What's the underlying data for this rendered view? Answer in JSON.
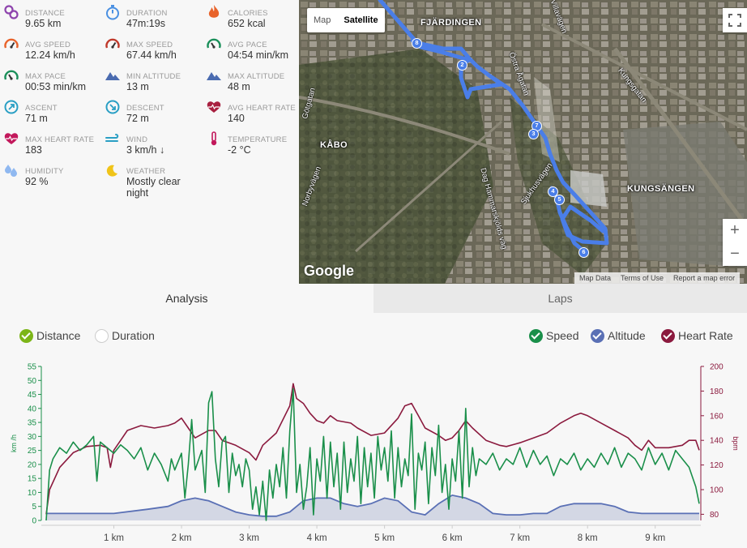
{
  "stats": [
    {
      "label": "DISTANCE",
      "value": "9.65 km",
      "icon": "distance-icon",
      "color": "#8e44ad"
    },
    {
      "label": "DURATION",
      "value": "47m:19s",
      "icon": "stopwatch-icon",
      "color": "#4a90e2"
    },
    {
      "label": "CALORIES",
      "value": "652 kcal",
      "icon": "flame-icon",
      "color": "#e8632b"
    },
    {
      "label": "AVG SPEED",
      "value": "12.24 km/h",
      "icon": "speedometer-icon",
      "color": "#e8632b"
    },
    {
      "label": "MAX SPEED",
      "value": "67.44 km/h",
      "icon": "speedometer-icon",
      "color": "#c0392b"
    },
    {
      "label": "AVG PACE",
      "value": "04:54 min/km",
      "icon": "pace-icon",
      "color": "#1a8f5a"
    },
    {
      "label": "MAX PACE",
      "value": "00:53 min/km",
      "icon": "pace-icon",
      "color": "#1a8f5a"
    },
    {
      "label": "MIN ALTITUDE",
      "value": "13 m",
      "icon": "mountain-icon",
      "color": "#4a6bb0"
    },
    {
      "label": "MAX ALTITUDE",
      "value": "48 m",
      "icon": "mountain-icon",
      "color": "#4a6bb0"
    },
    {
      "label": "ASCENT",
      "value": "71 m",
      "icon": "ascent-icon",
      "color": "#2a9fc4"
    },
    {
      "label": "DESCENT",
      "value": "72 m",
      "icon": "descent-icon",
      "color": "#2a9fc4"
    },
    {
      "label": "AVG HEART RATE",
      "value": "140",
      "icon": "heart-icon",
      "color": "#a82040"
    },
    {
      "label": "MAX HEART RATE",
      "value": "183",
      "icon": "heart-icon",
      "color": "#c2185b"
    },
    {
      "label": "WIND",
      "value": "3 km/h ↓",
      "icon": "wind-icon",
      "color": "#2a9fc4"
    },
    {
      "label": "TEMPERATURE",
      "value": "-2 °C",
      "icon": "thermometer-icon",
      "color": "#c2185b"
    },
    {
      "label": "HUMIDITY",
      "value": "92 %",
      "icon": "humidity-icon",
      "color": "#8fb8f0"
    },
    {
      "label": "WEATHER",
      "value": "Mostly clear night",
      "icon": "moon-icon",
      "color": "#f0c419"
    }
  ],
  "map": {
    "type_buttons": [
      "Map",
      "Satellite"
    ],
    "selected_type": "Satellite",
    "place_labels": [
      "FJÄRDINGEN",
      "KÅBO",
      "KUNGSÄNGEN"
    ],
    "street_labels": [
      "Kungsgatan",
      "Östra Ågatan",
      "Dag Hammarskjölds väg",
      "Sjukhusvägen",
      "Norbyvägen",
      "Villavägen",
      "Götgatan"
    ],
    "markers": [
      "2",
      "4",
      "5",
      "6",
      "7",
      "8",
      "3"
    ],
    "zoom_in": "+",
    "zoom_out": "−",
    "logo": "Google",
    "attribution": [
      "Map Data",
      "Terms of Use",
      "Report a map error"
    ],
    "route_color": "#4a7ee8"
  },
  "tabs": [
    "Analysis",
    "Laps"
  ],
  "active_tab": "Analysis",
  "x_toggles": [
    {
      "label": "Distance",
      "on": true,
      "color": "#7cb518"
    },
    {
      "label": "Duration",
      "on": false,
      "color": "#ffffff"
    }
  ],
  "series_toggles": [
    {
      "label": "Speed",
      "on": true,
      "color": "#1a8f4a"
    },
    {
      "label": "Altitude",
      "on": true,
      "color": "#5a70b5"
    },
    {
      "label": "Heart Rate",
      "on": true,
      "color": "#8b1a3e"
    }
  ],
  "chart_data": {
    "type": "line",
    "x_unit": "km",
    "x_range": [
      0,
      9.65
    ],
    "x_ticks": [
      "1 km",
      "2 km",
      "3 km",
      "4 km",
      "5 km",
      "6 km",
      "7 km",
      "8 km",
      "9 km"
    ],
    "y_left": {
      "label": "km /h",
      "ticks": [
        "0",
        "5",
        "10",
        "15",
        "20",
        "25",
        "30",
        "35",
        "40",
        "45",
        "50",
        "55"
      ],
      "range": [
        0,
        55
      ],
      "color": "#1a8f4a"
    },
    "y_right": {
      "label": "bpm",
      "ticks": [
        "80",
        "100",
        "120",
        "140",
        "160",
        "180",
        "200"
      ],
      "range": [
        75,
        200
      ],
      "color": "#8b1a3e"
    },
    "series": [
      {
        "name": "Speed",
        "axis": "left",
        "color": "#1a8f4a",
        "points": [
          [
            0,
            0
          ],
          [
            0.05,
            18
          ],
          [
            0.1,
            22
          ],
          [
            0.2,
            26
          ],
          [
            0.3,
            24
          ],
          [
            0.4,
            28
          ],
          [
            0.5,
            25
          ],
          [
            0.6,
            27
          ],
          [
            0.7,
            30
          ],
          [
            0.75,
            14
          ],
          [
            0.8,
            28
          ],
          [
            0.9,
            26
          ],
          [
            1.0,
            24
          ],
          [
            1.1,
            27
          ],
          [
            1.2,
            25
          ],
          [
            1.3,
            22
          ],
          [
            1.4,
            26
          ],
          [
            1.5,
            18
          ],
          [
            1.6,
            24
          ],
          [
            1.7,
            20
          ],
          [
            1.8,
            14
          ],
          [
            1.85,
            22
          ],
          [
            1.9,
            18
          ],
          [
            2.0,
            24
          ],
          [
            2.05,
            8
          ],
          [
            2.1,
            20
          ],
          [
            2.15,
            36
          ],
          [
            2.2,
            18
          ],
          [
            2.3,
            25
          ],
          [
            2.35,
            10
          ],
          [
            2.4,
            42
          ],
          [
            2.45,
            46
          ],
          [
            2.5,
            22
          ],
          [
            2.55,
            12
          ],
          [
            2.6,
            28
          ],
          [
            2.65,
            30
          ],
          [
            2.7,
            10
          ],
          [
            2.75,
            24
          ],
          [
            2.8,
            16
          ],
          [
            2.85,
            20
          ],
          [
            2.9,
            12
          ],
          [
            2.95,
            22
          ],
          [
            3.0,
            18
          ],
          [
            3.05,
            4
          ],
          [
            3.1,
            12
          ],
          [
            3.15,
            2
          ],
          [
            3.2,
            14
          ],
          [
            3.25,
            0
          ],
          [
            3.3,
            18
          ],
          [
            3.35,
            8
          ],
          [
            3.4,
            20
          ],
          [
            3.45,
            12
          ],
          [
            3.5,
            26
          ],
          [
            3.55,
            8
          ],
          [
            3.6,
            32
          ],
          [
            3.65,
            47
          ],
          [
            3.7,
            10
          ],
          [
            3.75,
            20
          ],
          [
            3.8,
            4
          ],
          [
            3.85,
            12
          ],
          [
            3.9,
            26
          ],
          [
            3.95,
            2
          ],
          [
            4.0,
            22
          ],
          [
            4.05,
            14
          ],
          [
            4.1,
            30
          ],
          [
            4.15,
            8
          ],
          [
            4.2,
            28
          ],
          [
            4.25,
            12
          ],
          [
            4.3,
            24
          ],
          [
            4.35,
            4
          ],
          [
            4.4,
            28
          ],
          [
            4.45,
            10
          ],
          [
            4.5,
            22
          ],
          [
            4.55,
            14
          ],
          [
            4.6,
            30
          ],
          [
            4.65,
            6
          ],
          [
            4.7,
            26
          ],
          [
            4.75,
            12
          ],
          [
            4.8,
            24
          ],
          [
            4.85,
            8
          ],
          [
            4.9,
            30
          ],
          [
            4.95,
            18
          ],
          [
            5.0,
            26
          ],
          [
            5.05,
            14
          ],
          [
            5.1,
            32
          ],
          [
            5.15,
            8
          ],
          [
            5.2,
            26
          ],
          [
            5.25,
            12
          ],
          [
            5.3,
            22
          ],
          [
            5.35,
            16
          ],
          [
            5.4,
            38
          ],
          [
            5.45,
            4
          ],
          [
            5.5,
            24
          ],
          [
            5.55,
            18
          ],
          [
            5.6,
            28
          ],
          [
            5.65,
            6
          ],
          [
            5.7,
            26
          ],
          [
            5.75,
            16
          ],
          [
            5.8,
            34
          ],
          [
            5.85,
            10
          ],
          [
            5.9,
            20
          ],
          [
            5.95,
            4
          ],
          [
            6.0,
            22
          ],
          [
            6.05,
            14
          ],
          [
            6.1,
            32
          ],
          [
            6.15,
            8
          ],
          [
            6.2,
            40
          ],
          [
            6.25,
            12
          ],
          [
            6.3,
            26
          ],
          [
            6.35,
            16
          ],
          [
            6.4,
            22
          ],
          [
            6.5,
            20
          ],
          [
            6.6,
            24
          ],
          [
            6.7,
            18
          ],
          [
            6.8,
            22
          ],
          [
            6.9,
            20
          ],
          [
            7.0,
            26
          ],
          [
            7.1,
            19
          ],
          [
            7.2,
            25
          ],
          [
            7.3,
            20
          ],
          [
            7.4,
            23
          ],
          [
            7.5,
            16
          ],
          [
            7.6,
            22
          ],
          [
            7.7,
            20
          ],
          [
            7.8,
            24
          ],
          [
            7.9,
            18
          ],
          [
            8.0,
            22
          ],
          [
            8.1,
            19
          ],
          [
            8.2,
            24
          ],
          [
            8.3,
            20
          ],
          [
            8.4,
            26
          ],
          [
            8.5,
            19
          ],
          [
            8.6,
            24
          ],
          [
            8.7,
            22
          ],
          [
            8.8,
            18
          ],
          [
            8.9,
            26
          ],
          [
            9.0,
            20
          ],
          [
            9.1,
            24
          ],
          [
            9.2,
            18
          ],
          [
            9.3,
            25
          ],
          [
            9.4,
            22
          ],
          [
            9.5,
            19
          ],
          [
            9.6,
            12
          ],
          [
            9.65,
            6
          ]
        ]
      },
      {
        "name": "Altitude",
        "axis": "left",
        "color": "#5a70b5",
        "points": [
          [
            0,
            2.5
          ],
          [
            0.5,
            2.5
          ],
          [
            1.0,
            2.5
          ],
          [
            1.5,
            4
          ],
          [
            1.8,
            5
          ],
          [
            2.0,
            7
          ],
          [
            2.2,
            8
          ],
          [
            2.4,
            7
          ],
          [
            2.6,
            5
          ],
          [
            2.8,
            3
          ],
          [
            3.0,
            2
          ],
          [
            3.2,
            1.5
          ],
          [
            3.4,
            1.5
          ],
          [
            3.6,
            3
          ],
          [
            3.8,
            7
          ],
          [
            4.0,
            8
          ],
          [
            4.2,
            8
          ],
          [
            4.4,
            6
          ],
          [
            4.6,
            5
          ],
          [
            4.8,
            6
          ],
          [
            5.0,
            8
          ],
          [
            5.2,
            7
          ],
          [
            5.4,
            3
          ],
          [
            5.6,
            2
          ],
          [
            5.8,
            6
          ],
          [
            6.0,
            9
          ],
          [
            6.2,
            8
          ],
          [
            6.4,
            6
          ],
          [
            6.6,
            2.5
          ],
          [
            6.8,
            2
          ],
          [
            7.0,
            2
          ],
          [
            7.2,
            2.5
          ],
          [
            7.4,
            2.5
          ],
          [
            7.6,
            5
          ],
          [
            7.8,
            6
          ],
          [
            8.0,
            6
          ],
          [
            8.2,
            6
          ],
          [
            8.4,
            5
          ],
          [
            8.6,
            3
          ],
          [
            8.8,
            2.5
          ],
          [
            9.0,
            2.5
          ],
          [
            9.2,
            2.5
          ],
          [
            9.4,
            2.5
          ],
          [
            9.65,
            2.5
          ]
        ]
      },
      {
        "name": "Heart Rate",
        "axis": "right",
        "color": "#8b1a3e",
        "points": [
          [
            0,
            80
          ],
          [
            0.05,
            100
          ],
          [
            0.2,
            118
          ],
          [
            0.4,
            130
          ],
          [
            0.6,
            135
          ],
          [
            0.8,
            136
          ],
          [
            0.9,
            134
          ],
          [
            0.95,
            118
          ],
          [
            1.0,
            132
          ],
          [
            1.1,
            140
          ],
          [
            1.2,
            148
          ],
          [
            1.4,
            152
          ],
          [
            1.6,
            150
          ],
          [
            1.8,
            152
          ],
          [
            1.9,
            154
          ],
          [
            2.0,
            158
          ],
          [
            2.1,
            150
          ],
          [
            2.2,
            142
          ],
          [
            2.4,
            148
          ],
          [
            2.5,
            148
          ],
          [
            2.6,
            140
          ],
          [
            2.8,
            136
          ],
          [
            3.0,
            130
          ],
          [
            3.1,
            124
          ],
          [
            3.2,
            136
          ],
          [
            3.4,
            146
          ],
          [
            3.6,
            168
          ],
          [
            3.65,
            186
          ],
          [
            3.7,
            174
          ],
          [
            3.8,
            170
          ],
          [
            3.9,
            162
          ],
          [
            4.0,
            156
          ],
          [
            4.1,
            154
          ],
          [
            4.2,
            160
          ],
          [
            4.3,
            156
          ],
          [
            4.5,
            154
          ],
          [
            4.6,
            150
          ],
          [
            4.8,
            144
          ],
          [
            5.0,
            146
          ],
          [
            5.2,
            158
          ],
          [
            5.3,
            168
          ],
          [
            5.4,
            170
          ],
          [
            5.5,
            160
          ],
          [
            5.6,
            150
          ],
          [
            5.8,
            144
          ],
          [
            5.9,
            140
          ],
          [
            6.0,
            142
          ],
          [
            6.1,
            148
          ],
          [
            6.2,
            156
          ],
          [
            6.3,
            150
          ],
          [
            6.5,
            140
          ],
          [
            6.7,
            136
          ],
          [
            6.8,
            135
          ],
          [
            7.0,
            138
          ],
          [
            7.2,
            142
          ],
          [
            7.4,
            146
          ],
          [
            7.6,
            154
          ],
          [
            7.8,
            160
          ],
          [
            7.9,
            162
          ],
          [
            8.0,
            160
          ],
          [
            8.2,
            154
          ],
          [
            8.4,
            148
          ],
          [
            8.6,
            142
          ],
          [
            8.7,
            136
          ],
          [
            8.8,
            132
          ],
          [
            8.9,
            140
          ],
          [
            9.0,
            134
          ],
          [
            9.2,
            134
          ],
          [
            9.4,
            136
          ],
          [
            9.5,
            140
          ],
          [
            9.6,
            140
          ],
          [
            9.65,
            132
          ]
        ]
      }
    ]
  }
}
